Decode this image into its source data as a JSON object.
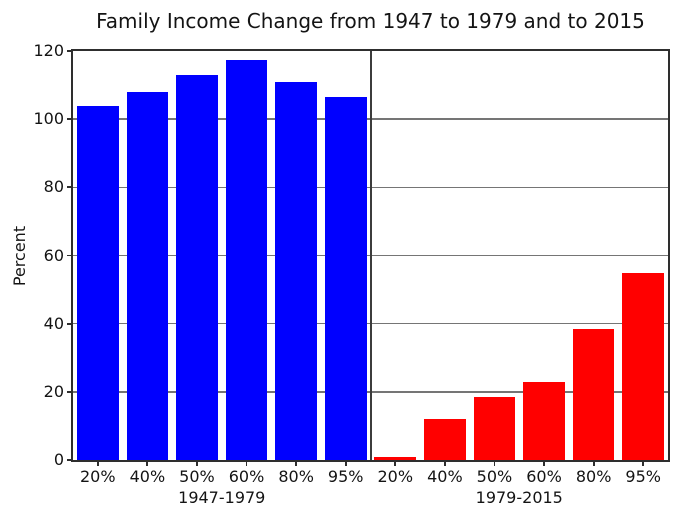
{
  "chart_data": {
    "type": "bar",
    "title": "Family Income Change from 1947 to 1979 and to 2015",
    "categories": [
      "20%",
      "40%",
      "50%",
      "60%",
      "80%",
      "95%"
    ],
    "series": [
      {
        "name": "1947-1979",
        "color": "#0000ff",
        "values": [
          104,
          108,
          113,
          117.5,
          111,
          106.5
        ]
      },
      {
        "name": "1979-2015",
        "color": "#ff0000",
        "values": [
          1,
          12,
          18.5,
          23,
          38.5,
          55
        ]
      }
    ],
    "xlabel": "",
    "ylabel": "Percent",
    "ylim": [
      0,
      120
    ],
    "yticks": [
      0,
      20,
      40,
      60,
      80,
      100,
      120
    ],
    "grid": "horizontal",
    "legend": "none"
  }
}
